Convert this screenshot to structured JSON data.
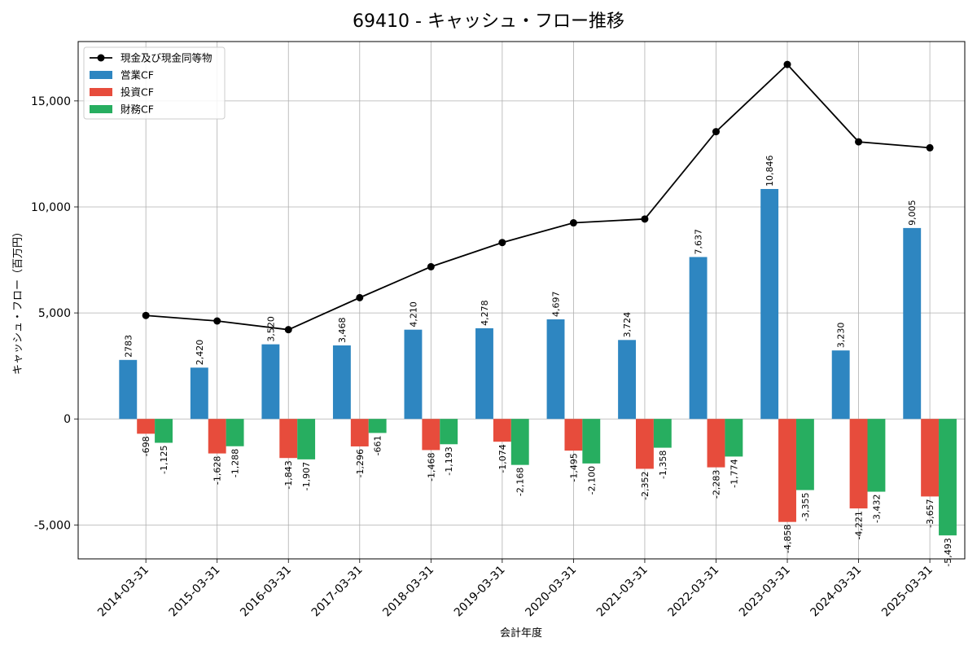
{
  "chart_data": {
    "type": "bar",
    "title": "69410 - キャッシュ・フロー推移",
    "xlabel": "会計年度",
    "ylabel": "キャッシュ・フロー（百万円）",
    "ylim": [
      -6600,
      17800
    ],
    "yticks": [
      -5000,
      0,
      5000,
      10000,
      15000
    ],
    "ytick_labels": [
      "-5,000",
      "0",
      "5,000",
      "10,000",
      "15,000"
    ],
    "grid": true,
    "legend_position": "top-left",
    "categories": [
      "2014-03-31",
      "2015-03-31",
      "2016-03-31",
      "2017-03-31",
      "2018-03-31",
      "2019-03-31",
      "2020-03-31",
      "2021-03-31",
      "2022-03-31",
      "2023-03-31",
      "2024-03-31",
      "2025-03-31"
    ],
    "series": [
      {
        "name": "営業CF",
        "kind": "bar",
        "color": "#2e86c1",
        "values": [
          2783,
          2420,
          3520,
          3468,
          4210,
          4278,
          4697,
          3724,
          7637,
          10846,
          3230,
          9005
        ],
        "labels": [
          "2783",
          "2,420",
          "3,520",
          "3,468",
          "4,210",
          "4,278",
          "4,697",
          "3,724",
          "7,637",
          "10,846",
          "3,230",
          "9,005"
        ]
      },
      {
        "name": "投資CF",
        "kind": "bar",
        "color": "#e74c3c",
        "values": [
          -698,
          -1628,
          -1843,
          -1296,
          -1468,
          -1074,
          -1495,
          -2352,
          -2283,
          -4858,
          -4221,
          -3657
        ],
        "labels": [
          "-698",
          "-1,628",
          "-1,843",
          "-1,296",
          "-1,468",
          "-1,074",
          "-1,495",
          "-2,352",
          "-2,283",
          "-4,858",
          "-4,221",
          "-3,657"
        ]
      },
      {
        "name": "財務CF",
        "kind": "bar",
        "color": "#27ae60",
        "values": [
          -1125,
          -1288,
          -1907,
          -661,
          -1193,
          -2168,
          -2100,
          -1358,
          -1774,
          -3355,
          -3432,
          -5493
        ],
        "labels": [
          "-1,125",
          "-1,288",
          "-1,907",
          "-661",
          "-1,193",
          "-2,168",
          "-2,100",
          "-1,358",
          "-1,774",
          "-3,355",
          "-3,432",
          "-5,493"
        ]
      },
      {
        "name": "現金及び現金同等物",
        "kind": "line",
        "color": "#000000",
        "values": [
          4880,
          4620,
          4210,
          5720,
          7180,
          8320,
          9250,
          9430,
          13550,
          16720,
          13070,
          12790
        ]
      }
    ]
  }
}
